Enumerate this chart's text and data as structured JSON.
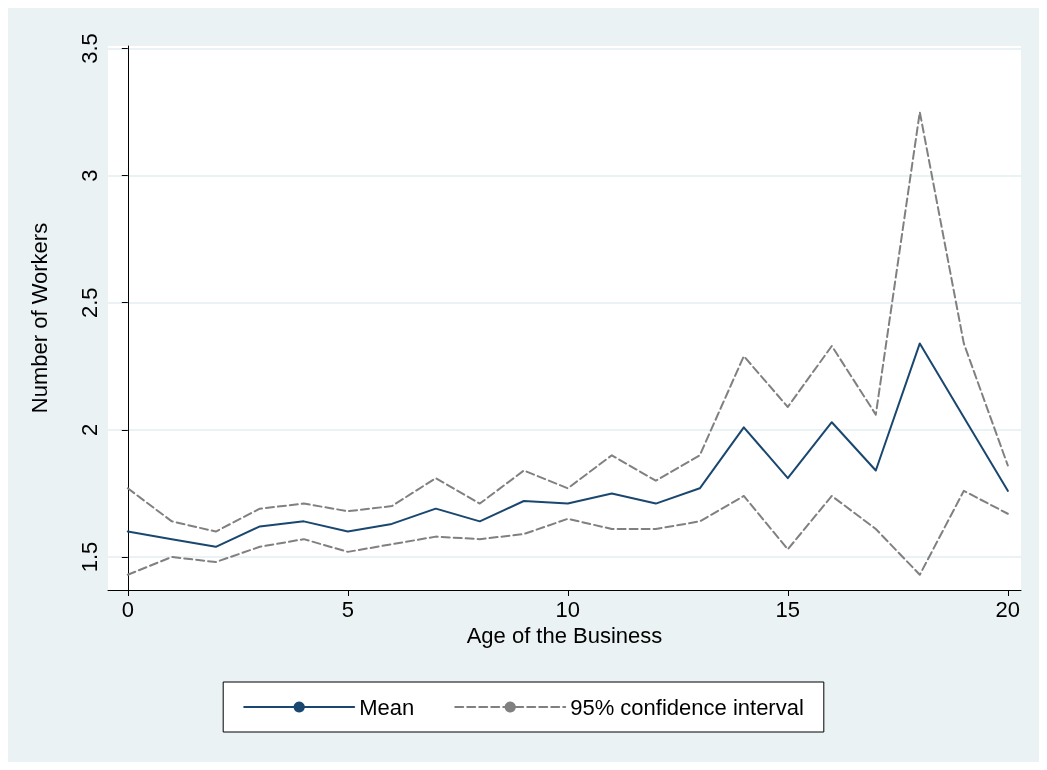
{
  "chart_data": {
    "type": "line",
    "xlabel": "Age of the Business",
    "ylabel": "Number of Workers",
    "x": [
      0,
      1,
      2,
      3,
      4,
      5,
      6,
      7,
      8,
      9,
      10,
      11,
      12,
      13,
      14,
      15,
      16,
      17,
      18,
      19,
      20
    ],
    "series": [
      {
        "name": "Mean",
        "color": "#1a476f",
        "line_style": "solid",
        "values": [
          1.6,
          1.57,
          1.54,
          1.62,
          1.64,
          1.6,
          1.63,
          1.69,
          1.64,
          1.72,
          1.71,
          1.75,
          1.71,
          1.77,
          2.01,
          1.81,
          2.03,
          1.84,
          2.34,
          2.05,
          1.76
        ]
      },
      {
        "name": "95% confidence interval",
        "color": "#808080",
        "line_style": "dashed",
        "values": [
          1.77,
          1.64,
          1.6,
          1.69,
          1.71,
          1.68,
          1.7,
          1.81,
          1.71,
          1.84,
          1.77,
          1.9,
          1.8,
          1.9,
          2.29,
          2.09,
          2.33,
          2.06,
          3.25,
          2.34,
          1.86
        ]
      },
      {
        "color": "#808080",
        "line_style": "dashed",
        "values": [
          1.43,
          1.5,
          1.48,
          1.54,
          1.57,
          1.52,
          1.55,
          1.58,
          1.57,
          1.59,
          1.65,
          1.61,
          1.61,
          1.64,
          1.74,
          1.53,
          1.74,
          1.61,
          1.43,
          1.76,
          1.67
        ]
      }
    ],
    "xlim": [
      -0.45,
      20.3
    ],
    "xticks": [
      0,
      5,
      10,
      15,
      20
    ],
    "ylim": [
      1.37,
      3.51
    ],
    "yticks": [
      1.5,
      2,
      2.5,
      3,
      3.5
    ],
    "grid": "y",
    "legend": "bottom",
    "marker": "none"
  }
}
